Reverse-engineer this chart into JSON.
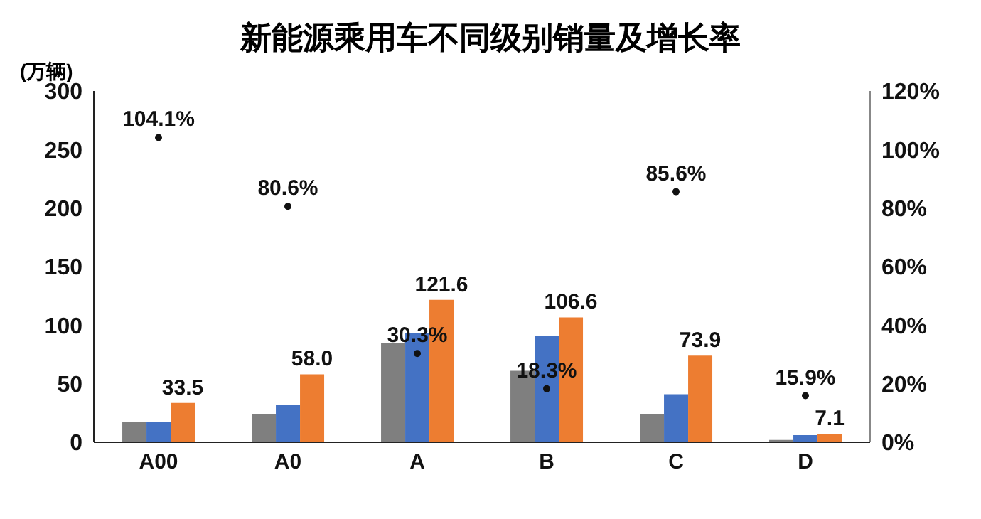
{
  "chart_data": {
    "type": "bar",
    "title": "新能源乘用车不同级别销量及增长率",
    "ylabel": "(万辆)",
    "categories": [
      "A00",
      "A0",
      "A",
      "B",
      "C",
      "D"
    ],
    "series": [
      {
        "color": "#7f7f7f",
        "values": [
          17,
          24,
          85,
          61,
          24,
          2
        ]
      },
      {
        "color": "#4472c4",
        "values": [
          17,
          32,
          93,
          91,
          41,
          6
        ]
      },
      {
        "color": "#ed7d31",
        "values": [
          33.5,
          58.0,
          121.6,
          106.6,
          73.9,
          7.1
        ],
        "value_labels": [
          "33.5",
          "58.0",
          "121.6",
          "106.6",
          "73.9",
          "7.1"
        ]
      },
      {
        "type": "scatter",
        "axis": "y2",
        "marker": "circle",
        "color": "#111111",
        "values": [
          104.1,
          80.6,
          30.3,
          18.3,
          85.6,
          15.9
        ],
        "value_labels": [
          "104.1%",
          "80.6%",
          "30.3%",
          "18.3%",
          "85.6%",
          "15.9%"
        ]
      }
    ],
    "ylim": [
      0,
      300
    ],
    "yticks": [
      0,
      50,
      100,
      150,
      200,
      250,
      300
    ],
    "y2lim": [
      0,
      120
    ],
    "y2ticks": [
      {
        "value": 0,
        "label": "0%"
      },
      {
        "value": 20,
        "label": "20%"
      },
      {
        "value": 40,
        "label": "40%"
      },
      {
        "value": 60,
        "label": "60%"
      },
      {
        "value": 80,
        "label": "80%"
      },
      {
        "value": 100,
        "label": "100%"
      },
      {
        "value": 120,
        "label": "120%"
      }
    ],
    "grid": false,
    "legend": false
  }
}
